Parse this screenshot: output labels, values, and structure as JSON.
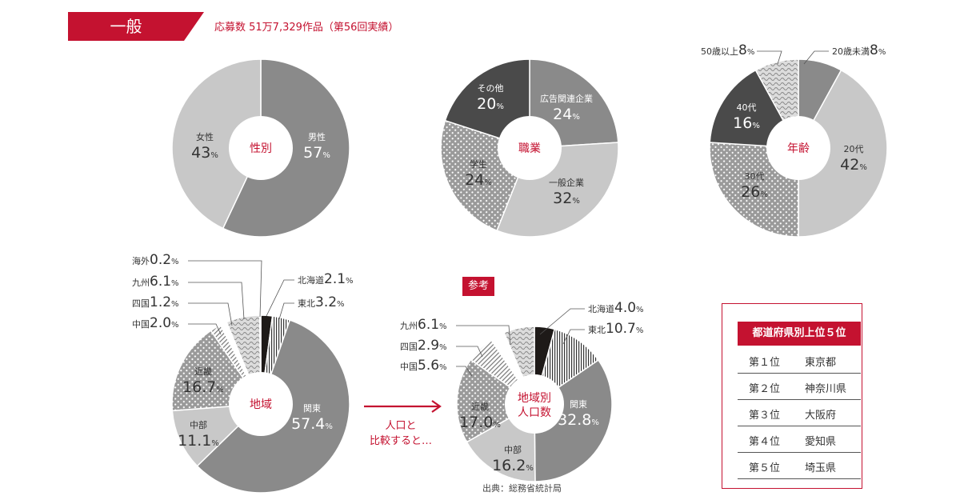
{
  "header": {
    "tag": "一般",
    "summary": "応募数 51万7,329作品（第56回実績）"
  },
  "colors": {
    "accent": "#c41230",
    "dark": "#4a4a4a",
    "mid": "#8a8a8a",
    "light": "#c8c8c8"
  },
  "reference_label": "参考",
  "arrow_text": [
    "人口と",
    "比較すると…"
  ],
  "source": "出典：総務省統計局",
  "ranking": {
    "title": "都道府県別上位５位",
    "rows": [
      {
        "rank": "第１位",
        "pref": "東京都"
      },
      {
        "rank": "第２位",
        "pref": "神奈川県"
      },
      {
        "rank": "第３位",
        "pref": "大阪府"
      },
      {
        "rank": "第４位",
        "pref": "愛知県"
      },
      {
        "rank": "第５位",
        "pref": "埼玉県"
      }
    ]
  },
  "chart_data": [
    {
      "type": "pie",
      "title": "性別",
      "slices": [
        {
          "name": "男性",
          "value": 57,
          "pattern": "mid"
        },
        {
          "name": "女性",
          "value": 43,
          "pattern": "light"
        }
      ]
    },
    {
      "type": "pie",
      "title": "職業",
      "slices": [
        {
          "name": "広告関連企業",
          "value": 24,
          "pattern": "mid"
        },
        {
          "name": "一般企業",
          "value": 32,
          "pattern": "light"
        },
        {
          "name": "学生",
          "value": 24,
          "pattern": "dots"
        },
        {
          "name": "その他",
          "value": 20,
          "pattern": "dark"
        }
      ]
    },
    {
      "type": "pie",
      "title": "年齢",
      "slices": [
        {
          "name": "20歳未満",
          "value": 8,
          "pattern": "mid"
        },
        {
          "name": "20代",
          "value": 42,
          "pattern": "light"
        },
        {
          "name": "30代",
          "value": 26,
          "pattern": "dots"
        },
        {
          "name": "40代",
          "value": 16,
          "pattern": "dark"
        },
        {
          "name": "50歳以上",
          "value": 8,
          "pattern": "waves"
        }
      ]
    },
    {
      "type": "pie",
      "title": "地域",
      "slices": [
        {
          "name": "北海道",
          "value": 2.1,
          "pattern": "black"
        },
        {
          "name": "東北",
          "value": 3.2,
          "pattern": "vlines"
        },
        {
          "name": "関東",
          "value": 57.4,
          "pattern": "mid"
        },
        {
          "name": "中部",
          "value": 11.1,
          "pattern": "light"
        },
        {
          "name": "近畿",
          "value": 16.7,
          "pattern": "dots"
        },
        {
          "name": "中国",
          "value": 2.0,
          "pattern": "hatch"
        },
        {
          "name": "四国",
          "value": 1.2,
          "pattern": "white"
        },
        {
          "name": "九州",
          "value": 6.1,
          "pattern": "waves"
        },
        {
          "name": "海外",
          "value": 0.2,
          "pattern": "dark"
        }
      ]
    },
    {
      "type": "pie",
      "title": "地域別人口数",
      "slices": [
        {
          "name": "北海道",
          "value": 4.0,
          "pattern": "black"
        },
        {
          "name": "東北",
          "value": 10.7,
          "pattern": "vlines"
        },
        {
          "name": "関東",
          "value": 32.8,
          "pattern": "mid"
        },
        {
          "name": "中部",
          "value": 16.2,
          "pattern": "light"
        },
        {
          "name": "近畿",
          "value": 17.0,
          "pattern": "dots"
        },
        {
          "name": "中国",
          "value": 5.6,
          "pattern": "hatch"
        },
        {
          "name": "四国",
          "value": 2.9,
          "pattern": "white"
        },
        {
          "name": "九州",
          "value": 6.1,
          "pattern": "waves"
        }
      ]
    }
  ]
}
